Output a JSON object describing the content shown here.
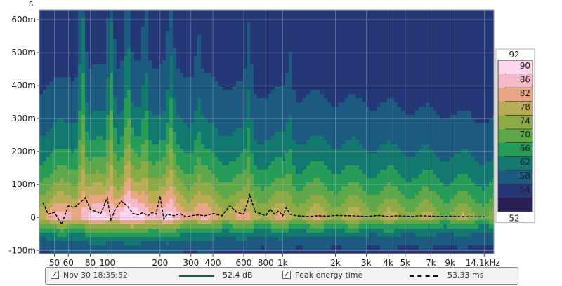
{
  "chart_data": {
    "type": "heatmap",
    "y_unit_label": "s",
    "x_ticks": [
      "50",
      "60",
      "80",
      "100",
      "200",
      "300",
      "400",
      "600",
      "800",
      "1k",
      "2k",
      "3k",
      "4k",
      "5k",
      "7k",
      "9k",
      "14.1kHz"
    ],
    "x_tick_values": [
      50,
      60,
      80,
      100,
      200,
      300,
      400,
      600,
      800,
      1000,
      2000,
      3000,
      4000,
      5000,
      7000,
      9000,
      14100
    ],
    "xlim": [
      41,
      16000
    ],
    "x_scale": "log",
    "y_ticks": [
      "600m",
      "500m",
      "400m",
      "300m",
      "200m",
      "100m",
      "0",
      "-100m"
    ],
    "y_tick_values": [
      0.6,
      0.5,
      0.4,
      0.3,
      0.2,
      0.1,
      0,
      -0.1
    ],
    "ylim": [
      -0.11,
      0.63
    ],
    "grid": true,
    "colorbar": {
      "max_label": "92",
      "min_label": "52",
      "levels": [
        "90",
        "86",
        "82",
        "78",
        "74",
        "70",
        "66",
        "62",
        "58",
        "54"
      ],
      "colors": [
        "#fdd6ee",
        "#f6b9c7",
        "#e9a883",
        "#b9ad55",
        "#8caa45",
        "#5ea74a",
        "#279c59",
        "#13786f",
        "#1c5a80",
        "#243777",
        "#2a1f56"
      ]
    },
    "peak_energy_curve": {
      "x": [
        43,
        46,
        50,
        55,
        60,
        65,
        70,
        75,
        80,
        86,
        92,
        100,
        105,
        110,
        120,
        130,
        140,
        150,
        160,
        170,
        180,
        190,
        200,
        210,
        220,
        240,
        260,
        280,
        300,
        330,
        360,
        400,
        450,
        500,
        550,
        600,
        650,
        700,
        750,
        800,
        850,
        900,
        950,
        1000,
        1050,
        1100,
        1200,
        1400,
        1600,
        1800,
        2000,
        2500,
        3000,
        3500,
        4000,
        4500,
        5000,
        5500,
        6000,
        7000,
        8000,
        9000,
        10000,
        12000,
        14100
      ],
      "y": [
        0.045,
        0.01,
        0.015,
        -0.02,
        0.035,
        0.03,
        0.045,
        0.06,
        0.025,
        0.018,
        0.012,
        0.06,
        -0.01,
        0.02,
        0.05,
        0.035,
        0.012,
        0.008,
        0.015,
        0.005,
        0.015,
        0.01,
        0.065,
        -0.005,
        0.01,
        0.005,
        0.012,
        0.002,
        0.005,
        0.008,
        0.005,
        0.012,
        0.005,
        0.035,
        0.015,
        0.01,
        0.068,
        0.015,
        0.012,
        0.005,
        0.025,
        0.01,
        0.02,
        0.005,
        0.03,
        0.01,
        0.005,
        0.003,
        0.005,
        0.004,
        0.006,
        0.005,
        0.003,
        0.006,
        0.003,
        0.005,
        0.004,
        0.003,
        0.005,
        0.004,
        0.003,
        0.004,
        0.003,
        0.002,
        0.002
      ]
    }
  },
  "legend": {
    "entry1_checked": true,
    "entry1_label": "Nov 30 18:35:52",
    "entry1_value": "52.4 dB",
    "entry1_color": "#1b5e4f",
    "entry2_checked": true,
    "entry2_label": "Peak energy time",
    "entry2_value": "53.33 ms",
    "entry2_color": "#111111"
  }
}
